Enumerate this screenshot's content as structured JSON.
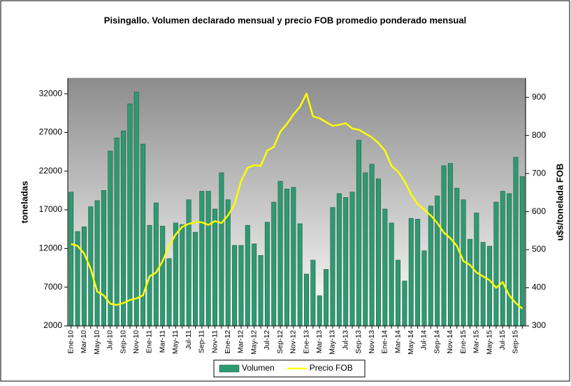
{
  "chart_data": {
    "type": "bar_line",
    "title": "Pisingallo. Volumen declarado mensual y precio FOB promedio ponderado mensual",
    "ylabel": "toneladas",
    "y2label": "u$s/tonelada FOB",
    "categories": [
      "Ene-10",
      null,
      "Mar-10",
      null,
      "May-10",
      null,
      "Jul-10",
      null,
      "Sep-10",
      null,
      "Nov-10",
      null,
      "Ene-11",
      null,
      "Mar-11",
      null,
      "May-11",
      null,
      "Jul-11",
      null,
      "Sep-11",
      null,
      "Nov-11",
      null,
      "Ene-12",
      null,
      "Mar-12",
      null,
      "May-12",
      null,
      "Jul-12",
      null,
      "Sep-12",
      null,
      "Nov-12",
      null,
      "Ene-13",
      null,
      "Mar-13",
      null,
      "May-13",
      null,
      "Jul-13",
      null,
      "Sep-13",
      null,
      "Nov-13",
      null,
      "Ene-14",
      null,
      "Mar-14",
      null,
      "May-14",
      null,
      "Jul-14",
      null,
      "Sep-14",
      null,
      "Nov-14",
      null,
      "Ene-15",
      null,
      "Mar-15",
      null,
      "May-15",
      null,
      "Jul-15",
      null,
      "Sep-15",
      null
    ],
    "series": [
      {
        "name": "Volumen",
        "color": "#2e9a72",
        "kind": "bar",
        "values": [
          19300,
          14200,
          14800,
          17400,
          18200,
          19500,
          24600,
          26300,
          27200,
          30700,
          32200,
          25500,
          15000,
          17900,
          14900,
          10700,
          15300,
          15100,
          18300,
          14100,
          19400,
          19400,
          17100,
          21800,
          18300,
          12400,
          12400,
          15000,
          12600,
          11100,
          15400,
          18000,
          20700,
          19700,
          19900,
          15200,
          8700,
          10500,
          5900,
          9300,
          17300,
          19100,
          18600,
          19300,
          26000,
          21800,
          22900,
          21000,
          17100,
          15300,
          10500,
          7800,
          15900,
          15800,
          11700,
          17500,
          18800,
          22700,
          23000,
          19800,
          18300,
          13200,
          16600,
          12800,
          12300,
          18000,
          19400,
          19100,
          23800,
          21300
        ]
      },
      {
        "name": "Precio FOB",
        "color": "#ffff00",
        "kind": "line",
        "axis": "y2",
        "values": [
          515,
          510,
          490,
          450,
          390,
          380,
          358,
          355,
          360,
          368,
          372,
          380,
          430,
          440,
          470,
          510,
          540,
          560,
          568,
          572,
          572,
          565,
          575,
          570,
          590,
          620,
          680,
          715,
          722,
          720,
          760,
          770,
          810,
          830,
          855,
          875,
          910,
          850,
          845,
          835,
          825,
          828,
          832,
          818,
          815,
          805,
          795,
          780,
          760,
          720,
          705,
          680,
          645,
          620,
          605,
          590,
          570,
          545,
          530,
          510,
          470,
          460,
          440,
          430,
          420,
          400,
          415,
          380,
          360,
          345
        ]
      }
    ],
    "ylim": [
      2000,
      34000
    ],
    "yticks": [
      2000,
      7000,
      12000,
      17000,
      22000,
      27000,
      32000
    ],
    "y2lim": [
      300,
      950
    ],
    "y2ticks": [
      300,
      400,
      500,
      600,
      700,
      800,
      900
    ],
    "grid": false,
    "legend": "bottom"
  }
}
